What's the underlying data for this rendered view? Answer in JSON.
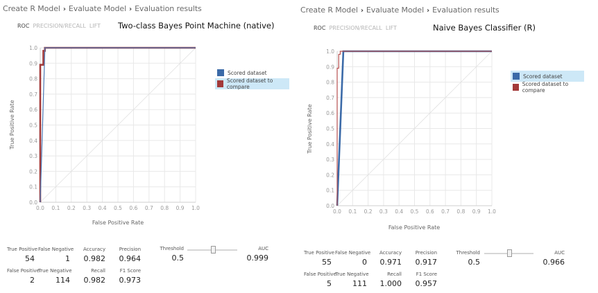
{
  "panels": [
    {
      "breadcrumb": [
        "Create R Model",
        "Evaluate Model",
        "Evaluation results"
      ],
      "tabs": [
        "ROC",
        "PRECISION/RECALL",
        "LIFT"
      ],
      "active_tab": "ROC",
      "model_title": "Two-class Bayes Point Machine (native)",
      "legend": [
        {
          "label": "Scored dataset",
          "color": "#3b6aa8",
          "selected": false
        },
        {
          "label": "Scored dataset to compare",
          "color": "#a33a3a",
          "selected": true
        }
      ],
      "metrics": {
        "true_positive": {
          "label": "True Positive",
          "value": "54"
        },
        "false_negative": {
          "label": "False Negative",
          "value": "1"
        },
        "accuracy": {
          "label": "Accuracy",
          "value": "0.982"
        },
        "precision": {
          "label": "Precision",
          "value": "0.964"
        },
        "false_positive": {
          "label": "False Positive",
          "value": "2"
        },
        "true_negative": {
          "label": "True Negative",
          "value": "114"
        },
        "recall": {
          "label": "Recall",
          "value": "0.982"
        },
        "f1_score": {
          "label": "F1 Score",
          "value": "0.973"
        },
        "threshold": {
          "label": "Threshold",
          "value": "0.5"
        },
        "auc": {
          "label": "AUC",
          "value": "0.999"
        }
      }
    },
    {
      "breadcrumb": [
        "Create R Model",
        "Evaluate Model",
        "Evaluation results"
      ],
      "tabs": [
        "ROC",
        "PRECISION/RECALL",
        "LIFT"
      ],
      "active_tab": "ROC",
      "model_title": "Naive Bayes Classifier (R)",
      "legend": [
        {
          "label": "Scored dataset",
          "color": "#3b6aa8",
          "selected": true
        },
        {
          "label": "Scored dataset to compare",
          "color": "#a33a3a",
          "selected": false
        }
      ],
      "metrics": {
        "true_positive": {
          "label": "True Positive",
          "value": "55"
        },
        "false_negative": {
          "label": "False Negative",
          "value": "0"
        },
        "accuracy": {
          "label": "Accuracy",
          "value": "0.971"
        },
        "precision": {
          "label": "Precision",
          "value": "0.917"
        },
        "false_positive": {
          "label": "False Positive",
          "value": "5"
        },
        "true_negative": {
          "label": "True Negative",
          "value": "111"
        },
        "recall": {
          "label": "Recall",
          "value": "1.000"
        },
        "f1_score": {
          "label": "F1 Score",
          "value": "0.957"
        },
        "threshold": {
          "label": "Threshold",
          "value": "0.5"
        },
        "auc": {
          "label": "AUC",
          "value": "0.966"
        }
      }
    }
  ],
  "chart_data": [
    {
      "type": "line",
      "title": "Two-class Bayes Point Machine (native)",
      "xlabel": "False Positive Rate",
      "ylabel": "True Positive Rate",
      "xlim": [
        0,
        1
      ],
      "ylim": [
        0,
        1
      ],
      "xticks": [
        "0.0",
        "0.1",
        "0.2",
        "0.3",
        "0.4",
        "0.5",
        "0.6",
        "0.7",
        "0.8",
        "0.9",
        "1.0"
      ],
      "yticks": [
        "0.0",
        "0.1",
        "0.2",
        "0.3",
        "0.4",
        "0.5",
        "0.6",
        "0.7",
        "0.8",
        "0.9",
        "1.0"
      ],
      "grid": true,
      "legend_position": "right",
      "series": [
        {
          "name": "Scored dataset",
          "color": "#4a78b5",
          "width": 1.2,
          "x": [
            0.0,
            0.03,
            1.0
          ],
          "y": [
            0.0,
            1.0,
            1.0
          ]
        },
        {
          "name": "Scored dataset to compare",
          "color": "#a33a3a",
          "width": 2.6,
          "x": [
            0.0,
            0.0,
            0.02,
            0.02,
            0.03,
            0.03,
            1.0
          ],
          "y": [
            0.0,
            0.89,
            0.89,
            0.98,
            0.98,
            1.0,
            1.0
          ]
        },
        {
          "name": "diagonal",
          "color": "#e2e2e2",
          "width": 0.8,
          "x": [
            0.0,
            1.0
          ],
          "y": [
            0.0,
            1.0
          ]
        }
      ]
    },
    {
      "type": "line",
      "title": "Naive Bayes Classifier (R)",
      "xlabel": "False Positive Rate",
      "ylabel": "True Positive Rate",
      "xlim": [
        0,
        1
      ],
      "ylim": [
        0,
        1
      ],
      "xticks": [
        "0.0",
        "0.1",
        "0.2",
        "0.3",
        "0.4",
        "0.5",
        "0.6",
        "0.7",
        "0.8",
        "0.9",
        "1.0"
      ],
      "yticks": [
        "0.0",
        "0.1",
        "0.2",
        "0.3",
        "0.4",
        "0.5",
        "0.6",
        "0.7",
        "0.8",
        "0.9",
        "1.0"
      ],
      "grid": true,
      "legend_position": "right",
      "series": [
        {
          "name": "Scored dataset",
          "color": "#3b6aa8",
          "width": 2.6,
          "x": [
            0.0,
            0.04,
            1.0
          ],
          "y": [
            0.0,
            1.0,
            1.0
          ]
        },
        {
          "name": "Scored dataset to compare",
          "color": "#b85050",
          "width": 1.2,
          "x": [
            0.0,
            0.0,
            0.01,
            0.01,
            0.02,
            0.02,
            1.0
          ],
          "y": [
            0.0,
            0.89,
            0.89,
            0.98,
            0.98,
            1.0,
            1.0
          ]
        },
        {
          "name": "diagonal",
          "color": "#e2e2e2",
          "width": 0.8,
          "x": [
            0.0,
            1.0
          ],
          "y": [
            0.0,
            1.0
          ]
        }
      ]
    }
  ]
}
